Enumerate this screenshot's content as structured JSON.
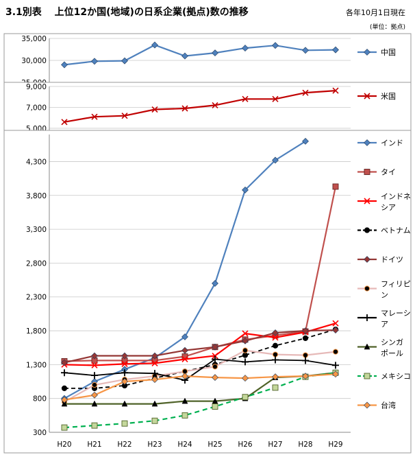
{
  "title": "3.1別表　 上位12か国(地域)の日系企業(拠点)数の推移",
  "note": "各年10月1日現在",
  "unit": "(単位：拠点)",
  "chart_data": [
    {
      "type": "line",
      "categories": [
        "H20",
        "H21",
        "H22",
        "H23",
        "H24",
        "H25",
        "H26",
        "H27",
        "H28",
        "H29"
      ],
      "ylim": [
        25000,
        35000
      ],
      "yticks": [
        25000,
        30000,
        35000
      ],
      "ytick_labels": [
        "25,000",
        "30,000",
        "35,000"
      ],
      "grid": true,
      "legend_position": "right",
      "series": [
        {
          "name": "中国",
          "color": "#4F81BD",
          "marker": "diamond",
          "values": [
            29000,
            29800,
            29900,
            33500,
            31000,
            31700,
            32800,
            33400,
            32300,
            32400
          ]
        }
      ]
    },
    {
      "type": "line",
      "categories": [
        "H20",
        "H21",
        "H22",
        "H23",
        "H24",
        "H25",
        "H26",
        "H27",
        "H28",
        "H29"
      ],
      "ylim": [
        4800,
        9000
      ],
      "yticks": [
        5000,
        7000,
        9000
      ],
      "ytick_labels": [
        "5,000",
        "7,000",
        "9,000"
      ],
      "grid": true,
      "legend_position": "right",
      "series": [
        {
          "name": "米国",
          "color": "#C00000",
          "marker": "x",
          "values": [
            5600,
            6100,
            6200,
            6800,
            6900,
            7200,
            7800,
            7800,
            8400,
            8600
          ]
        }
      ]
    },
    {
      "type": "line",
      "categories": [
        "H20",
        "H21",
        "H22",
        "H23",
        "H24",
        "H25",
        "H26",
        "H27",
        "H28",
        "H29"
      ],
      "ylim": [
        300,
        4700
      ],
      "yticks": [
        300,
        800,
        1300,
        1800,
        2300,
        2800,
        3300,
        3800,
        4300
      ],
      "ytick_labels": [
        "300",
        "800",
        "1,300",
        "1,800",
        "2,300",
        "2,800",
        "3,300",
        "3,800",
        "4,300"
      ],
      "grid": true,
      "legend_position": "right",
      "series": [
        {
          "name": "インド",
          "color": "#4F81BD",
          "marker": "diamond",
          "dash": "",
          "values": [
            800,
            1050,
            1230,
            1400,
            1710,
            2500,
            3880,
            4320,
            4600,
            null
          ]
        },
        {
          "name": "タイ",
          "color": "#C0504D",
          "marker": "square",
          "dash": "",
          "values": [
            1350,
            1360,
            1360,
            1360,
            1420,
            1560,
            1670,
            1730,
            1790,
            3930
          ]
        },
        {
          "name": "インドネシア",
          "color": "#FF0000",
          "marker": "x",
          "dash": "",
          "values": [
            1300,
            1290,
            1310,
            1320,
            1380,
            1430,
            1760,
            1700,
            1780,
            1910
          ]
        },
        {
          "name": "ベトナム",
          "color": "#000000",
          "marker": "circle",
          "dash": "6,4",
          "values": [
            950,
            950,
            990,
            1100,
            1200,
            1300,
            1440,
            1580,
            1690,
            1820
          ]
        },
        {
          "name": "ドイツ",
          "color": "#953735",
          "marker": "diamond",
          "dash": "",
          "values": [
            1330,
            1430,
            1430,
            1430,
            1510,
            1560,
            1650,
            1770,
            1800,
            1810
          ]
        },
        {
          "name": "フィリピン",
          "color": "#E6B9B8",
          "marker": "circle",
          "dash": "",
          "values": [
            750,
            1000,
            1080,
            1130,
            1200,
            1270,
            1510,
            1450,
            1440,
            1490
          ]
        },
        {
          "name": "マレーシア",
          "color": "#000000",
          "marker": "plus",
          "dash": "",
          "values": [
            1180,
            1140,
            1180,
            1170,
            1070,
            1380,
            1340,
            1370,
            1360,
            1290
          ]
        },
        {
          "name": "シンガポール",
          "color": "#4F6228",
          "marker": "triangle",
          "dash": "",
          "values": [
            720,
            720,
            720,
            720,
            760,
            760,
            800,
            1110,
            1130,
            1180
          ]
        },
        {
          "name": "メキシコ",
          "color": "#00B050",
          "marker": "square",
          "dash": "7,5",
          "values": [
            370,
            400,
            430,
            470,
            550,
            680,
            820,
            960,
            1120,
            1180
          ]
        },
        {
          "name": "台湾",
          "color": "#F79646",
          "marker": "diamond",
          "dash": "",
          "values": [
            780,
            850,
            1050,
            1080,
            1130,
            1110,
            1100,
            1120,
            1130,
            1160
          ]
        }
      ]
    }
  ],
  "legend_labels": {
    "インドネシア": [
      "インドネ",
      "シア"
    ],
    "フィリピン": [
      "フィリピ",
      "ン"
    ],
    "マレーシア": [
      "マレーシ",
      "ア"
    ],
    "シンガポール": [
      "シンガ",
      "ポール"
    ]
  }
}
